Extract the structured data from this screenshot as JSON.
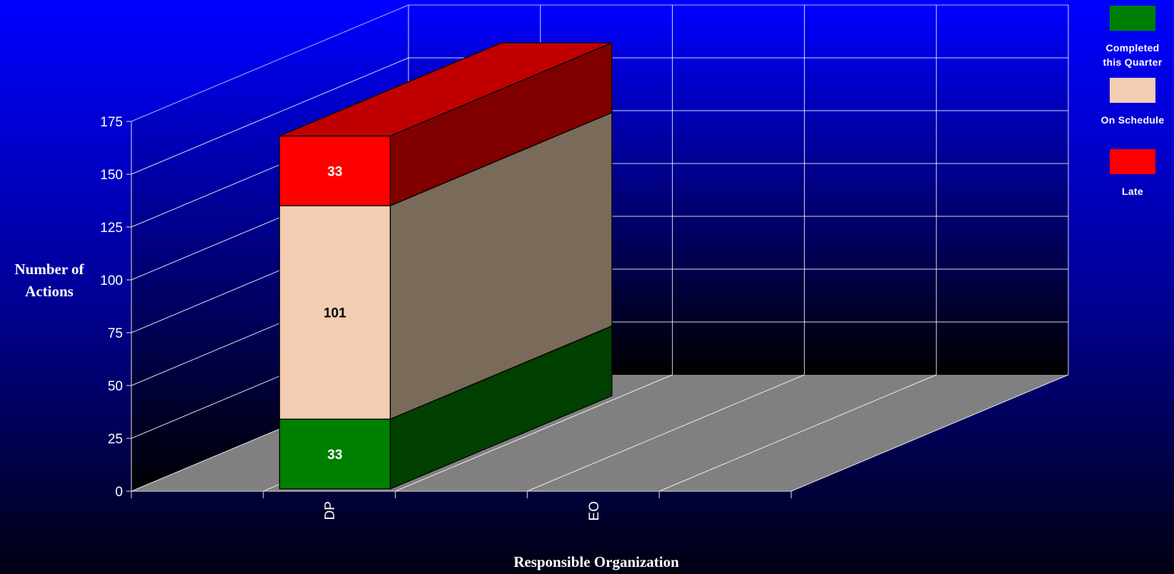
{
  "chart_data": {
    "type": "bar",
    "stacked": true,
    "three_d": true,
    "categories": [
      "DP",
      "EO"
    ],
    "series": [
      {
        "name": "Completed this Quarter",
        "values": [
          33,
          0
        ],
        "color": "#008000",
        "side_color": "#004000"
      },
      {
        "name": "On Schedule",
        "values": [
          101,
          0
        ],
        "color": "#f2cdb2",
        "side_color": "#7a6a59"
      },
      {
        "name": "Late",
        "values": [
          33,
          0
        ],
        "color": "#ff0000",
        "side_color": "#800000",
        "top_color": "#c00000"
      }
    ],
    "xlabel": "Responsible Organization",
    "ylabel": "Number of Actions",
    "ylim": [
      0,
      175
    ],
    "yticks": [
      0,
      25,
      50,
      75,
      100,
      125,
      150,
      175
    ],
    "grid": true,
    "legend_position": "top-right",
    "colors": {
      "background_top": "#0000ff",
      "background_bottom": "#000012",
      "floor": "#808080",
      "gridline": "#ffffff",
      "text": "#ffffff"
    }
  },
  "legend": [
    {
      "label": "Completed this Quarter",
      "color": "#008000"
    },
    {
      "label": "On Schedule",
      "color": "#f2cdb2"
    },
    {
      "label": "Late",
      "color": "#ff0000"
    }
  ]
}
